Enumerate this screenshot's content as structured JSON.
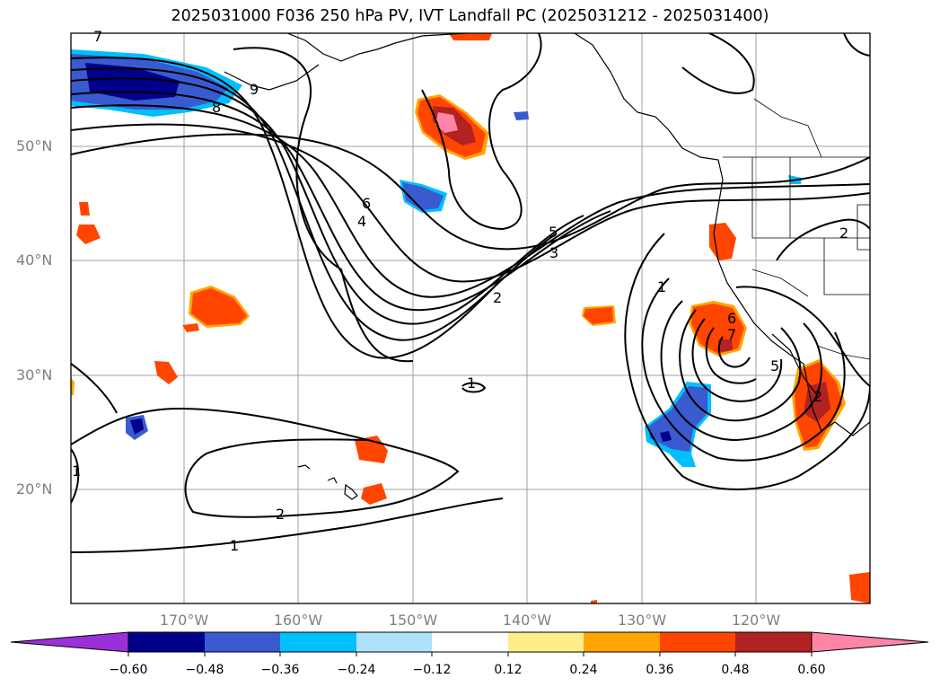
{
  "title": "2025031000 F036 250 hPa PV, IVT Landfall PC (2025031212 - 2025031400)",
  "map": {
    "lat_labels": [
      "50°N",
      "40°N",
      "30°N",
      "20°N"
    ],
    "lon_labels": [
      "170°W",
      "160°W",
      "150°W",
      "140°W",
      "130°W",
      "120°W"
    ],
    "contour_labels": [
      "1",
      "1",
      "1",
      "1",
      "2",
      "2",
      "2",
      "2",
      "3",
      "4",
      "5",
      "5",
      "6",
      "6",
      "7",
      "7",
      "8",
      "9"
    ]
  },
  "colorbar": {
    "ticks": [
      "−0.60",
      "−0.48",
      "−0.36",
      "−0.24",
      "−0.12",
      "0.12",
      "0.24",
      "0.36",
      "0.48",
      "0.60"
    ],
    "colors": [
      "#9b30d9",
      "#00008b",
      "#3a5bd0",
      "#00bfff",
      "#aee2fb",
      "#ffffff",
      "#ffec8b",
      "#ffa500",
      "#ff4500",
      "#b22222",
      "#ff85a8"
    ]
  }
}
